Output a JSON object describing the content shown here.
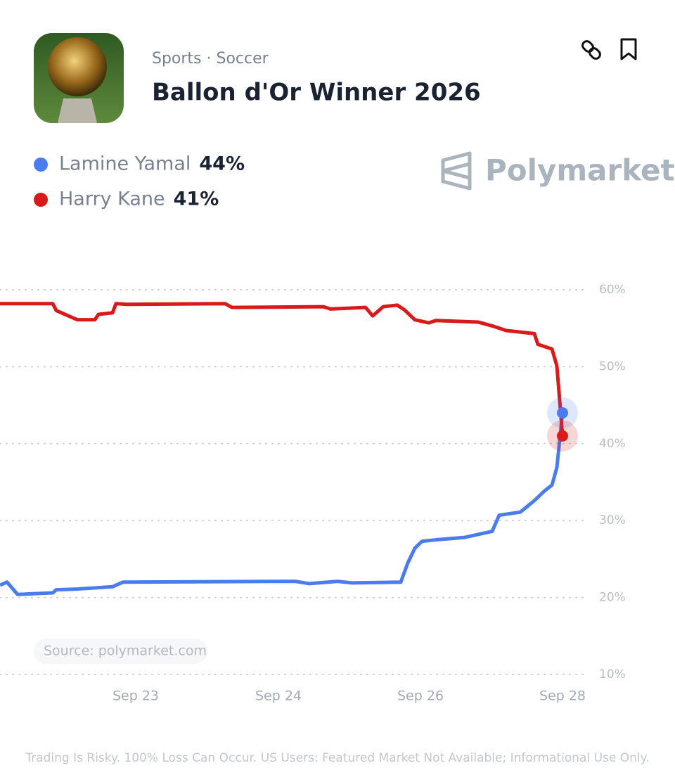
{
  "header": {
    "category": "Sports · Soccer",
    "title": "Ballon d'Or Winner 2026",
    "brand": "Polymarket"
  },
  "chart_data": {
    "type": "line",
    "series": [
      {
        "name": "Lamine Yamal",
        "color": "#4a7cf0",
        "legend_value": "44%",
        "x": [
          0,
          10,
          25,
          75,
          80,
          110,
          160,
          175,
          420,
          440,
          480,
          500,
          570,
          580,
          590,
          600,
          620,
          660,
          700,
          710,
          740,
          760,
          775,
          785,
          792,
          800
        ],
        "values": [
          21.6,
          22,
          20.4,
          20.6,
          21,
          21.1,
          21.4,
          22,
          22.1,
          21.8,
          22.1,
          21.9,
          22,
          24.5,
          26.4,
          27.3,
          27.5,
          27.8,
          28.6,
          30.7,
          31.1,
          32.6,
          33.9,
          34.6,
          36.9,
          44
        ]
      },
      {
        "name": "Harry Kane",
        "color": "#d81a1a",
        "legend_value": "41%",
        "x": [
          0,
          20,
          75,
          80,
          110,
          135,
          140,
          160,
          165,
          180,
          320,
          330,
          460,
          470,
          520,
          530,
          545,
          565,
          575,
          590,
          610,
          620,
          680,
          700,
          720,
          760,
          765,
          785,
          792,
          796,
          800
        ],
        "values": [
          58.2,
          58.2,
          58.2,
          57.3,
          56.1,
          56.1,
          56.8,
          57,
          58.2,
          58.1,
          58.2,
          57.7,
          57.8,
          57.5,
          57.7,
          56.6,
          57.8,
          58,
          57.4,
          56.1,
          55.7,
          56,
          55.8,
          55.3,
          54.7,
          54.3,
          52.9,
          52.3,
          50.1,
          45.6,
          41
        ]
      }
    ],
    "xlim": [
      0,
      830
    ],
    "xticks": [
      {
        "value": 193,
        "label": "Sep 23"
      },
      {
        "value": 396,
        "label": "Sep 24"
      },
      {
        "value": 598,
        "label": "Sep 26"
      },
      {
        "value": 800,
        "label": "Sep 28"
      }
    ],
    "ylim": [
      10,
      60
    ],
    "yticks": [
      {
        "value": 10,
        "label": "10%"
      },
      {
        "value": 20,
        "label": "20%"
      },
      {
        "value": 30,
        "label": "30%"
      },
      {
        "value": 40,
        "label": "40%"
      },
      {
        "value": 50,
        "label": "50%"
      },
      {
        "value": 60,
        "label": "60%"
      }
    ],
    "grid": true,
    "source": "Source: polymarket.com"
  },
  "footer": "Trading Is Risky. 100% Loss Can Occur. US Users: Featured Market Not Available; Informational Use Only."
}
